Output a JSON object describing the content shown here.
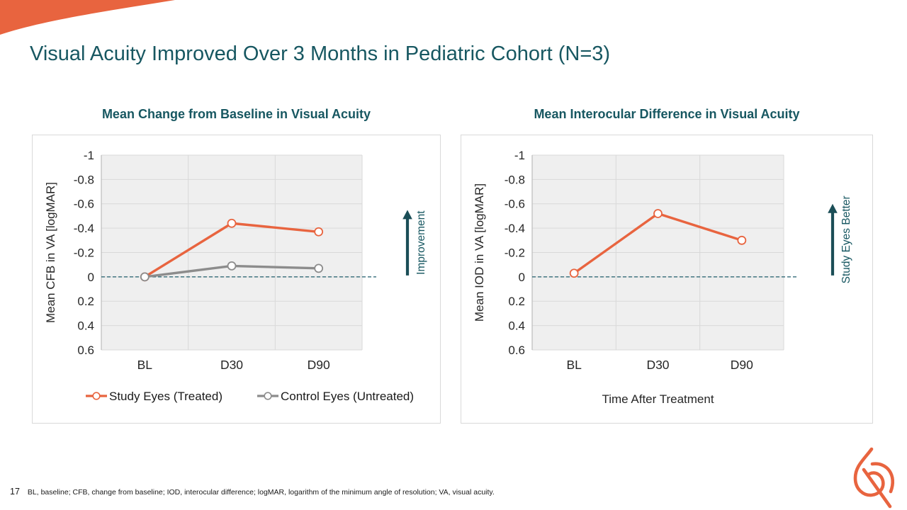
{
  "slide": {
    "title": "Visual Acuity Improved Over 3 Months in Pediatric Cohort (N=3)",
    "page_number": "17",
    "footnote": "BL, baseline; CFB, change from baseline; IOD, interocular difference; logMAR, logarithm of the minimum angle of resolution; VA, visual acuity."
  },
  "colors": {
    "accent_orange": "#E8643F",
    "teal_text": "#175761",
    "arrow_teal": "#1B4E57",
    "series_gray": "#8C8C8C",
    "plot_bg": "#EFEFEF",
    "gridline": "#D9D9D9",
    "axis_line": "#BFBFBF",
    "zero_line": "#1F5C6B",
    "tick_text": "#262626"
  },
  "chart_data": [
    {
      "type": "line",
      "title": "Mean Change from Baseline in Visual Acuity",
      "categories": [
        "BL",
        "D30",
        "D90"
      ],
      "series": [
        {
          "name": "Study Eyes (Treated)",
          "color": "#E8643F",
          "values": [
            0,
            -0.44,
            -0.37
          ]
        },
        {
          "name": "Control Eyes (Untreated)",
          "color": "#8C8C8C",
          "values": [
            0,
            -0.09,
            -0.07
          ]
        }
      ],
      "ylabel": "Mean CFB in VA [logMAR]",
      "xlabel": "",
      "ylim": [
        -1,
        0.6
      ],
      "y_axis_reversed": true,
      "yticks": [
        "-1",
        "-0.8",
        "-0.6",
        "-0.4",
        "-0.2",
        "0",
        "0.2",
        "0.4",
        "0.6"
      ],
      "grid": true,
      "zero_line_dashed": true,
      "legend_position": "bottom",
      "annotation_arrow": {
        "label": "Improvement",
        "direction": "up"
      }
    },
    {
      "type": "line",
      "title": "Mean Interocular Difference in Visual Acuity",
      "categories": [
        "BL",
        "D30",
        "D90"
      ],
      "series": [
        {
          "name": "",
          "color": "#E8643F",
          "values": [
            -0.03,
            -0.52,
            -0.3
          ]
        }
      ],
      "ylabel": "Mean IOD in VA [logMAR]",
      "xlabel": "Time After Treatment",
      "ylim": [
        -1,
        0.6
      ],
      "y_axis_reversed": true,
      "yticks": [
        "-1",
        "-0.8",
        "-0.6",
        "-0.4",
        "-0.2",
        "0",
        "0.2",
        "0.4",
        "0.6"
      ],
      "grid": true,
      "zero_line_dashed": true,
      "legend_position": "none",
      "annotation_arrow": {
        "label": "Study Eyes Better",
        "direction": "up"
      }
    }
  ]
}
